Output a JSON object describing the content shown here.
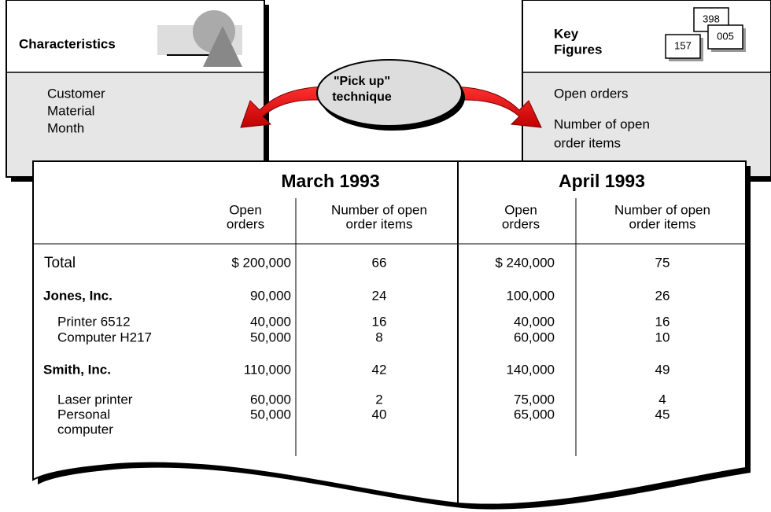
{
  "characteristics": {
    "title": "Characteristics",
    "items": [
      "Customer",
      "Material",
      "Month"
    ]
  },
  "key_figures": {
    "title_lines": [
      "Key",
      "Figures"
    ],
    "items": [
      [
        "Open orders"
      ],
      [
        "Number of open",
        "order items"
      ]
    ],
    "icon_numbers": [
      "398",
      "005",
      "157"
    ]
  },
  "technique": [
    "\"Pick up\"",
    "technique"
  ],
  "table": {
    "columns": [
      {
        "period": "March 1993",
        "headers": [
          [
            "Open",
            "orders"
          ],
          [
            "Number of open",
            "order items"
          ]
        ]
      },
      {
        "period": "April 1993",
        "headers": [
          [
            "Open",
            "orders"
          ],
          [
            "Number of open",
            "order items"
          ]
        ]
      }
    ],
    "rows": [
      {
        "label_lines": [
          "Total"
        ],
        "values": [
          "$ 200,000",
          "66",
          "$ 240,000",
          "75"
        ]
      },
      {
        "label_lines": [
          "Jones, Inc."
        ],
        "bold": true,
        "values": [
          "90,000",
          "24",
          "100,000",
          "26"
        ]
      },
      {
        "label_lines": [
          "Printer  6512"
        ],
        "values": [
          "40,000",
          "16",
          "40,000",
          "16"
        ]
      },
      {
        "label_lines": [
          "Computer H217"
        ],
        "values": [
          "50,000",
          "8",
          "60,000",
          "10"
        ]
      },
      {
        "label_lines": [
          "Smith, Inc."
        ],
        "bold": true,
        "values": [
          "110,000",
          "42",
          "140,000",
          "49"
        ]
      },
      {
        "label_lines": [
          "Laser printer"
        ],
        "values": [
          "60,000",
          "2",
          "75,000",
          "4"
        ]
      },
      {
        "label_lines": [
          "Personal",
          "computer"
        ],
        "values": [
          "50,000",
          "40",
          "65,000",
          "45"
        ]
      }
    ]
  }
}
